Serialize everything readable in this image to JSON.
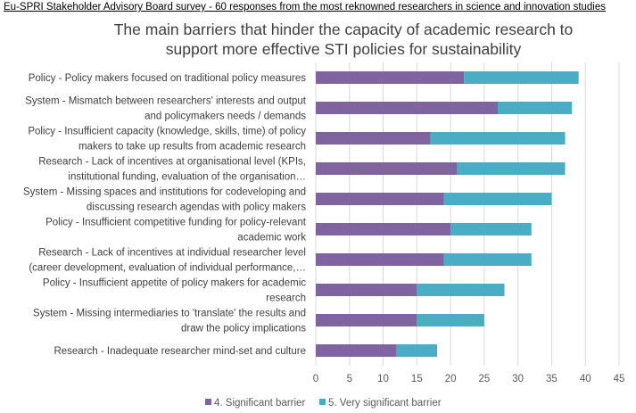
{
  "caption": "Eu-SPRI Stakeholder Advisory Board survey - 60 responses from the most reknowned researchers in science and innovation studies",
  "chart_data": {
    "type": "bar",
    "orientation": "horizontal",
    "stacked": true,
    "title_lines": [
      "The main barriers that hinder the capacity of academic research to",
      "support more effective STI policies for sustainability"
    ],
    "categories": [
      [
        "Policy - Policy makers focused on traditional policy measures"
      ],
      [
        "System - Mismatch between researchers' interests and output",
        "and policymakers needs / demands"
      ],
      [
        "Policy - Insufficient capacity (knowledge, skills, time) of policy",
        "makers to take up results from academic research"
      ],
      [
        "Research - Lack of incentives at organisational level (KPIs,",
        "institutional funding, evaluation of the organisation…"
      ],
      [
        "System - Missing spaces and institutions for codeveloping and",
        "discussing research agendas with policy makers"
      ],
      [
        "Policy - Insufficient competitive funding for policy-relevant",
        "academic work"
      ],
      [
        "Research - Lack of incentives at individual researcher level",
        "(career development, evaluation of individual performance,…"
      ],
      [
        "Policy - Insufficient appetite of policy makers for academic",
        "research"
      ],
      [
        "System - Missing intermediaries to 'translate' the results and",
        "draw the policy implications"
      ],
      [
        "Research - Inadequate researcher mind-set and culture"
      ]
    ],
    "series": [
      {
        "name": "4. Significant barrier",
        "color": "#8064a2",
        "values": [
          22,
          27,
          17,
          21,
          19,
          20,
          19,
          15,
          15,
          12
        ]
      },
      {
        "name": "5. Very significant barrier",
        "color": "#4bacc6",
        "values": [
          17,
          11,
          20,
          16,
          16,
          12,
          13,
          13,
          10,
          6
        ]
      }
    ],
    "xlim": [
      0,
      45
    ],
    "xticks": [
      "0",
      "5",
      "10",
      "15",
      "20",
      "25",
      "30",
      "35",
      "40",
      "45"
    ],
    "gridlines": true,
    "legend": "bottom"
  }
}
